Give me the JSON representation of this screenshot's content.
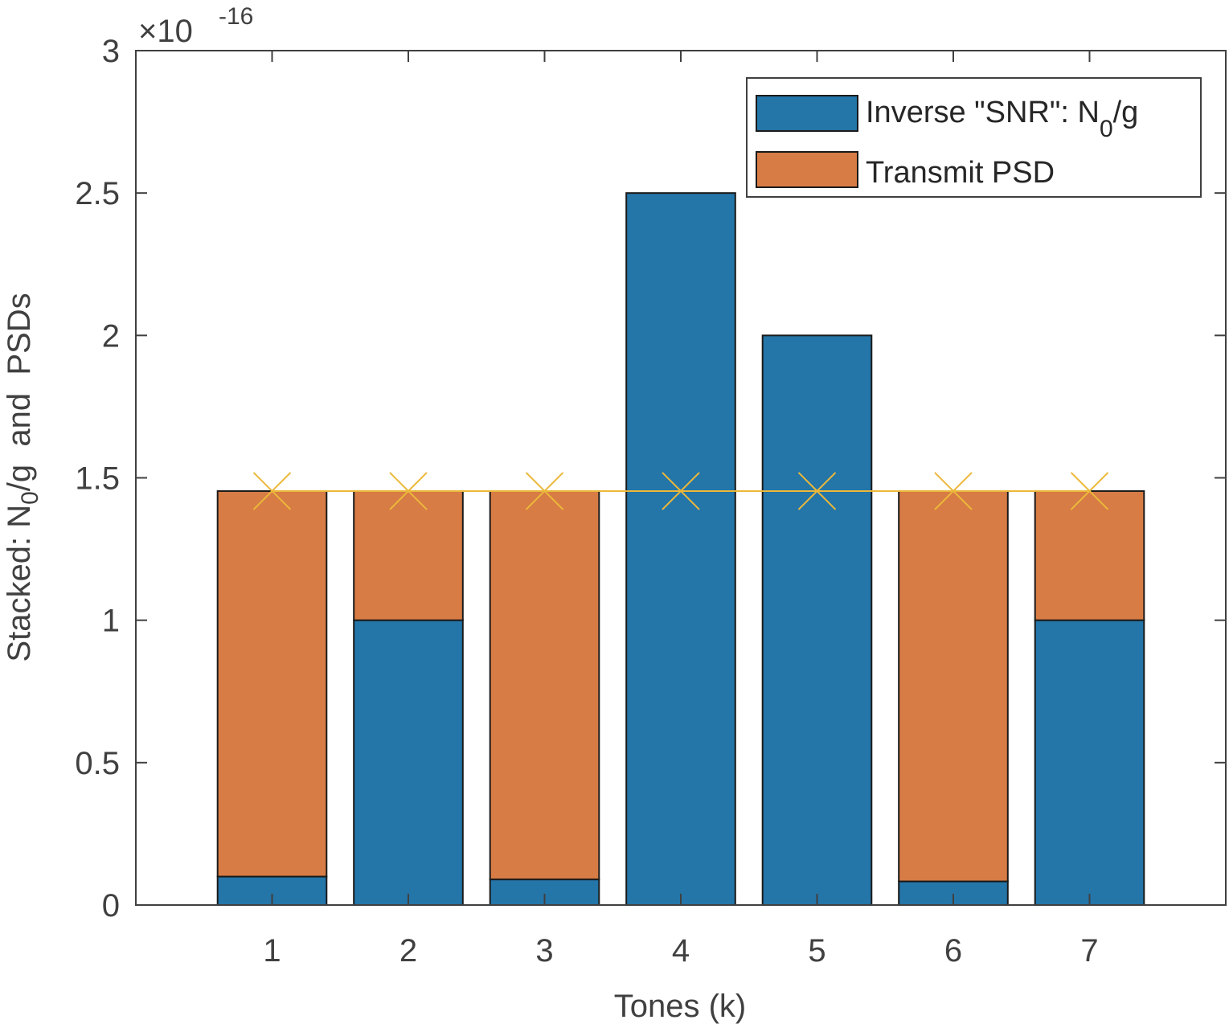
{
  "chart_data": {
    "type": "bar",
    "stacked": true,
    "title": "",
    "xlabel": "Tones (k)",
    "ylabel": "Stacked: N0/g  and  PSDs",
    "ylabel_parts": {
      "pre": "Stacked: N",
      "sub": "0",
      "post": "/g  and  PSDs"
    },
    "y_exponent_label": {
      "times": "×10",
      "exp": "-16"
    },
    "categories": [
      "1",
      "2",
      "3",
      "4",
      "5",
      "6",
      "7"
    ],
    "x": [
      1,
      2,
      3,
      4,
      5,
      6,
      7
    ],
    "xlim": [
      0,
      8
    ],
    "ylim": [
      0,
      3
    ],
    "yticks": [
      0,
      0.5,
      1,
      1.5,
      2,
      2.5,
      3
    ],
    "ytick_labels": [
      "0",
      "0.5",
      "1",
      "1.5",
      "2",
      "2.5",
      "3"
    ],
    "xtick_labels": [
      "1",
      "2",
      "3",
      "4",
      "5",
      "6",
      "7"
    ],
    "scale_factor": 1e-16,
    "series": [
      {
        "name": "Inverse \"SNR\": N0/g",
        "legend_parts": {
          "pre": "Inverse \"SNR\": N",
          "sub": "0",
          "post": "/g"
        },
        "color": "#2475a8",
        "values": [
          0.1,
          1.0,
          0.09,
          2.5,
          2.0,
          0.083,
          1.0
        ]
      },
      {
        "name": "Transmit PSD",
        "legend_parts": {
          "pre": "Transmit PSD",
          "sub": "",
          "post": ""
        },
        "color": "#d77c45",
        "values": [
          1.3535,
          0.4535,
          1.3635,
          0,
          0,
          1.3705,
          0.4535
        ]
      }
    ],
    "water_level": {
      "value": 1.4535,
      "color": "#ecb83a",
      "marker": "x",
      "x": [
        1,
        2,
        3,
        4,
        5,
        6,
        7
      ]
    },
    "legend": {
      "position": "top-right"
    },
    "grid": false
  }
}
